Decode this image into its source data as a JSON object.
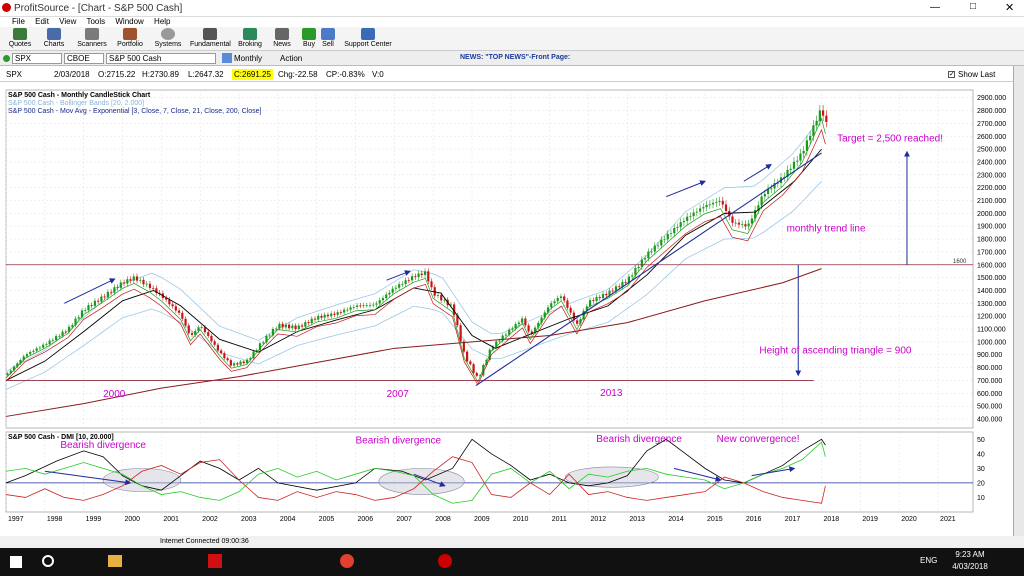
{
  "window": {
    "app": "ProfitSource",
    "title": "ProfitSource - [Chart - S&P 500 Cash]"
  },
  "menu": [
    "File",
    "Edit",
    "View",
    "Tools",
    "Window",
    "Help"
  ],
  "toolbar": [
    "Quotes",
    "Charts",
    "Scanners",
    "Portfolio",
    "Systems",
    "Fundamental",
    "Broking",
    "News",
    "Buy",
    "Sell",
    "Support Center"
  ],
  "symbolbar": {
    "symbol": "SPX",
    "exchange": "CBOE",
    "name": "S&P 500 Cash",
    "period": "Monthly",
    "action": "Action",
    "news": "NEWS: \"TOP NEWS\"-Front Page:"
  },
  "info": {
    "sym": "SPX",
    "date": "2/03/2018",
    "open": "O:2715.22",
    "high": "H:2730.89",
    "low": "L:2647.32",
    "close": "C:2691.25",
    "chg": "Chg:-22.58",
    "cp": "CP:-0.83%",
    "vol": "V:0",
    "show_last": "Show Last"
  },
  "status": {
    "connection": "Internet Connected 09:00:36"
  },
  "clock": {
    "time": "9:23 AM",
    "date": "4/03/2018",
    "lang": "ENG"
  },
  "colors": {
    "candle_up": "#1a9a1a",
    "candle_down": "#c81414",
    "ema_fast": "#1a9a1a",
    "ema_mid": "#c81414",
    "ema21": "#000000",
    "ema200": "#8b1a1a",
    "bollinger": "#9cc8e8",
    "trend": "#1c2c9c",
    "annot": "#cc00cc"
  },
  "chart_data": [
    {
      "type": "candlestick",
      "title": "S&P 500 Cash - Monthly CandleStick Chart",
      "legend": [
        "S&P 500 Cash - Bollinger Bands [20, 2.000]",
        "S&P 500 Cash - Mov Avg - Exponential   [3, Close, 7, Close, 21, Close, 200, Close]"
      ],
      "x_ticks": [
        "1997",
        "1998",
        "1999",
        "2000",
        "2001",
        "2002",
        "2003",
        "2004",
        "2005",
        "2006",
        "2007",
        "2008",
        "2009",
        "2010",
        "2011",
        "2012",
        "2013",
        "2014",
        "2015",
        "2016",
        "2017",
        "2018",
        "2019",
        "2020",
        "2021"
      ],
      "y_ticks": [
        "400.000",
        "500.000",
        "600.000",
        "700.000",
        "800.000",
        "900.000",
        "1000.000",
        "1100.000",
        "1200.000",
        "1300.000",
        "1400.000",
        "1500.000",
        "1600.000",
        "1700.000",
        "1800.000",
        "1900.000",
        "2000.000",
        "2100.000",
        "2200.000",
        "2300.000",
        "2400.000",
        "2500.000",
        "2600.000",
        "2700.000",
        "2800.000",
        "2900.000"
      ],
      "xlim": [
        1997,
        2021.9
      ],
      "ylim": [
        330,
        2960
      ],
      "close_path": [
        [
          1997.0,
          740
        ],
        [
          1997.5,
          900
        ],
        [
          1998.0,
          980
        ],
        [
          1998.6,
          1100
        ],
        [
          1999.0,
          1250
        ],
        [
          1999.5,
          1350
        ],
        [
          2000.0,
          1460
        ],
        [
          2000.3,
          1500
        ],
        [
          2000.7,
          1430
        ],
        [
          2001.0,
          1360
        ],
        [
          2001.5,
          1210
        ],
        [
          2001.75,
          1040
        ],
        [
          2002.0,
          1130
        ],
        [
          2002.5,
          920
        ],
        [
          2002.8,
          820
        ],
        [
          2003.2,
          850
        ],
        [
          2003.6,
          1000
        ],
        [
          2004.0,
          1130
        ],
        [
          2004.5,
          1110
        ],
        [
          2005.0,
          1190
        ],
        [
          2005.5,
          1220
        ],
        [
          2006.0,
          1280
        ],
        [
          2006.5,
          1290
        ],
        [
          2007.0,
          1420
        ],
        [
          2007.5,
          1510
        ],
        [
          2007.8,
          1540
        ],
        [
          2008.0,
          1380
        ],
        [
          2008.5,
          1270
        ],
        [
          2008.8,
          900
        ],
        [
          2009.15,
          710
        ],
        [
          2009.5,
          960
        ],
        [
          2010.0,
          1100
        ],
        [
          2010.3,
          1180
        ],
        [
          2010.5,
          1050
        ],
        [
          2011.0,
          1290
        ],
        [
          2011.3,
          1360
        ],
        [
          2011.7,
          1130
        ],
        [
          2012.0,
          1310
        ],
        [
          2012.5,
          1380
        ],
        [
          2013.0,
          1480
        ],
        [
          2013.5,
          1680
        ],
        [
          2014.0,
          1820
        ],
        [
          2014.5,
          1960
        ],
        [
          2015.0,
          2060
        ],
        [
          2015.4,
          2100
        ],
        [
          2015.7,
          1930
        ],
        [
          2016.1,
          1900
        ],
        [
          2016.5,
          2150
        ],
        [
          2017.0,
          2280
        ],
        [
          2017.5,
          2470
        ],
        [
          2018.0,
          2820
        ],
        [
          2018.1,
          2700
        ]
      ],
      "ema21": [
        [
          1997,
          700
        ],
        [
          1998,
          850
        ],
        [
          1999,
          1080
        ],
        [
          2000,
          1320
        ],
        [
          2000.8,
          1400
        ],
        [
          2001.5,
          1280
        ],
        [
          2002.5,
          1020
        ],
        [
          2003.5,
          920
        ],
        [
          2004.5,
          1080
        ],
        [
          2005.5,
          1170
        ],
        [
          2006.5,
          1250
        ],
        [
          2007.5,
          1420
        ],
        [
          2008.2,
          1380
        ],
        [
          2009.0,
          1050
        ],
        [
          2009.6,
          950
        ],
        [
          2010.5,
          1060
        ],
        [
          2011.5,
          1180
        ],
        [
          2012.5,
          1280
        ],
        [
          2013.5,
          1520
        ],
        [
          2014.5,
          1830
        ],
        [
          2015.5,
          2000
        ],
        [
          2016.3,
          2010
        ],
        [
          2017.3,
          2250
        ],
        [
          2018.0,
          2500
        ]
      ],
      "ema200": [
        [
          1997,
          420
        ],
        [
          1999,
          520
        ],
        [
          2001,
          640
        ],
        [
          2003,
          730
        ],
        [
          2005,
          840
        ],
        [
          2007,
          950
        ],
        [
          2009,
          1000
        ],
        [
          2011,
          1050
        ],
        [
          2013,
          1150
        ],
        [
          2015,
          1320
        ],
        [
          2017,
          1460
        ],
        [
          2018,
          1570
        ]
      ],
      "levels": [
        {
          "y": 1600,
          "label": "1600"
        },
        {
          "y": 700,
          "label": ""
        }
      ],
      "trendline": [
        [
          2009.1,
          660
        ],
        [
          2018.0,
          2470
        ]
      ],
      "arrows": [
        [
          1998.5,
          1300,
          1999.8,
          1490
        ],
        [
          2006.8,
          1480,
          2007.4,
          1550
        ],
        [
          2014.0,
          2130,
          2015.0,
          2250
        ],
        [
          2016.0,
          2250,
          2016.7,
          2380
        ]
      ],
      "annotations": {
        "target": "Target = 2,500 reached!",
        "trend": "monthly trend line",
        "height": "Height of ascending triangle = 900",
        "y2000": "2000",
        "y2007": "2007",
        "y2013": "2013"
      }
    },
    {
      "type": "line",
      "title": "S&P 500 Cash - DMI [10, 20.000]",
      "y_ticks": [
        "10",
        "20",
        "30",
        "40",
        "50"
      ],
      "ylim": [
        0,
        55
      ],
      "level": 20,
      "adx": [
        [
          1997,
          20
        ],
        [
          1997.5,
          25
        ],
        [
          1998.3,
          35
        ],
        [
          1999.0,
          42
        ],
        [
          1999.5,
          38
        ],
        [
          2000.0,
          25
        ],
        [
          2000.5,
          18
        ],
        [
          2001.0,
          15
        ],
        [
          2001.5,
          25
        ],
        [
          2002.0,
          35
        ],
        [
          2002.5,
          30
        ],
        [
          2003.0,
          22
        ],
        [
          2003.5,
          30
        ],
        [
          2004.0,
          20
        ],
        [
          2005.0,
          15
        ],
        [
          2006.0,
          20
        ],
        [
          2006.5,
          30
        ],
        [
          2007.2,
          28
        ],
        [
          2007.8,
          22
        ],
        [
          2008.5,
          30
        ],
        [
          2009.0,
          50
        ],
        [
          2009.5,
          40
        ],
        [
          2010.0,
          32
        ],
        [
          2010.5,
          22
        ],
        [
          2011.0,
          26
        ],
        [
          2011.5,
          20
        ],
        [
          2012.0,
          18
        ],
        [
          2012.5,
          20
        ],
        [
          2013.0,
          25
        ],
        [
          2013.5,
          42
        ],
        [
          2014.0,
          50
        ],
        [
          2014.5,
          40
        ],
        [
          2015.0,
          30
        ],
        [
          2015.5,
          22
        ],
        [
          2016.0,
          20
        ],
        [
          2016.5,
          26
        ],
        [
          2017.0,
          32
        ],
        [
          2017.5,
          42
        ],
        [
          2018.0,
          50
        ],
        [
          2018.1,
          46
        ]
      ],
      "plus_di": [
        [
          1997,
          28
        ],
        [
          1997.5,
          30
        ],
        [
          1998.0,
          26
        ],
        [
          1998.5,
          30
        ],
        [
          1999.0,
          34
        ],
        [
          1999.5,
          30
        ],
        [
          2000.0,
          26
        ],
        [
          2000.5,
          18
        ],
        [
          2001.0,
          12
        ],
        [
          2001.5,
          14
        ],
        [
          2002.0,
          10
        ],
        [
          2002.5,
          8
        ],
        [
          2003.0,
          14
        ],
        [
          2003.5,
          26
        ],
        [
          2004.0,
          30
        ],
        [
          2004.5,
          24
        ],
        [
          2005.0,
          28
        ],
        [
          2005.5,
          22
        ],
        [
          2006.0,
          26
        ],
        [
          2006.5,
          30
        ],
        [
          2007.0,
          28
        ],
        [
          2007.5,
          25
        ],
        [
          2008.0,
          12
        ],
        [
          2008.5,
          6
        ],
        [
          2009.0,
          8
        ],
        [
          2009.5,
          26
        ],
        [
          2010.0,
          30
        ],
        [
          2010.5,
          20
        ],
        [
          2011.0,
          28
        ],
        [
          2011.5,
          16
        ],
        [
          2012.0,
          26
        ],
        [
          2012.5,
          24
        ],
        [
          2013.0,
          28
        ],
        [
          2013.5,
          30
        ],
        [
          2014.0,
          26
        ],
        [
          2014.5,
          24
        ],
        [
          2015.0,
          22
        ],
        [
          2015.5,
          16
        ],
        [
          2016.0,
          20
        ],
        [
          2016.5,
          26
        ],
        [
          2017.0,
          30
        ],
        [
          2017.5,
          36
        ],
        [
          2018.0,
          48
        ],
        [
          2018.1,
          38
        ]
      ],
      "minus_di": [
        [
          1997,
          12
        ],
        [
          1997.5,
          10
        ],
        [
          1998.0,
          16
        ],
        [
          1998.5,
          10
        ],
        [
          1999.0,
          8
        ],
        [
          1999.5,
          12
        ],
        [
          2000.0,
          18
        ],
        [
          2000.5,
          28
        ],
        [
          2001.0,
          32
        ],
        [
          2001.5,
          26
        ],
        [
          2002.0,
          34
        ],
        [
          2002.5,
          36
        ],
        [
          2003.0,
          22
        ],
        [
          2003.5,
          10
        ],
        [
          2004.0,
          8
        ],
        [
          2004.5,
          14
        ],
        [
          2005.0,
          10
        ],
        [
          2005.5,
          14
        ],
        [
          2006.0,
          12
        ],
        [
          2006.5,
          8
        ],
        [
          2007.0,
          10
        ],
        [
          2007.5,
          16
        ],
        [
          2008.0,
          28
        ],
        [
          2008.5,
          38
        ],
        [
          2009.0,
          34
        ],
        [
          2009.5,
          12
        ],
        [
          2010.0,
          10
        ],
        [
          2010.5,
          20
        ],
        [
          2011.0,
          12
        ],
        [
          2011.5,
          26
        ],
        [
          2012.0,
          12
        ],
        [
          2012.5,
          14
        ],
        [
          2013.0,
          10
        ],
        [
          2013.5,
          8
        ],
        [
          2014.0,
          10
        ],
        [
          2014.5,
          12
        ],
        [
          2015.0,
          14
        ],
        [
          2015.5,
          24
        ],
        [
          2016.0,
          20
        ],
        [
          2016.5,
          14
        ],
        [
          2017.0,
          10
        ],
        [
          2017.5,
          8
        ],
        [
          2018.0,
          6
        ],
        [
          2018.1,
          18
        ]
      ],
      "ellipses": [
        [
          2000.5,
          22,
          1.0,
          8
        ],
        [
          2007.7,
          21,
          1.1,
          9
        ],
        [
          2012.6,
          24,
          1.2,
          7
        ]
      ],
      "arrows": [
        [
          1998.0,
          28,
          2000.2,
          20
        ],
        [
          2007.5,
          26,
          2008.3,
          18
        ],
        [
          2014.2,
          30,
          2015.4,
          22
        ],
        [
          2016.2,
          25,
          2017.3,
          30
        ]
      ],
      "annotations": {
        "b1": "Bearish divergence",
        "b2": "Bearish divergence",
        "b3": "Bearish divergence",
        "nc": "New convergence!"
      }
    }
  ]
}
